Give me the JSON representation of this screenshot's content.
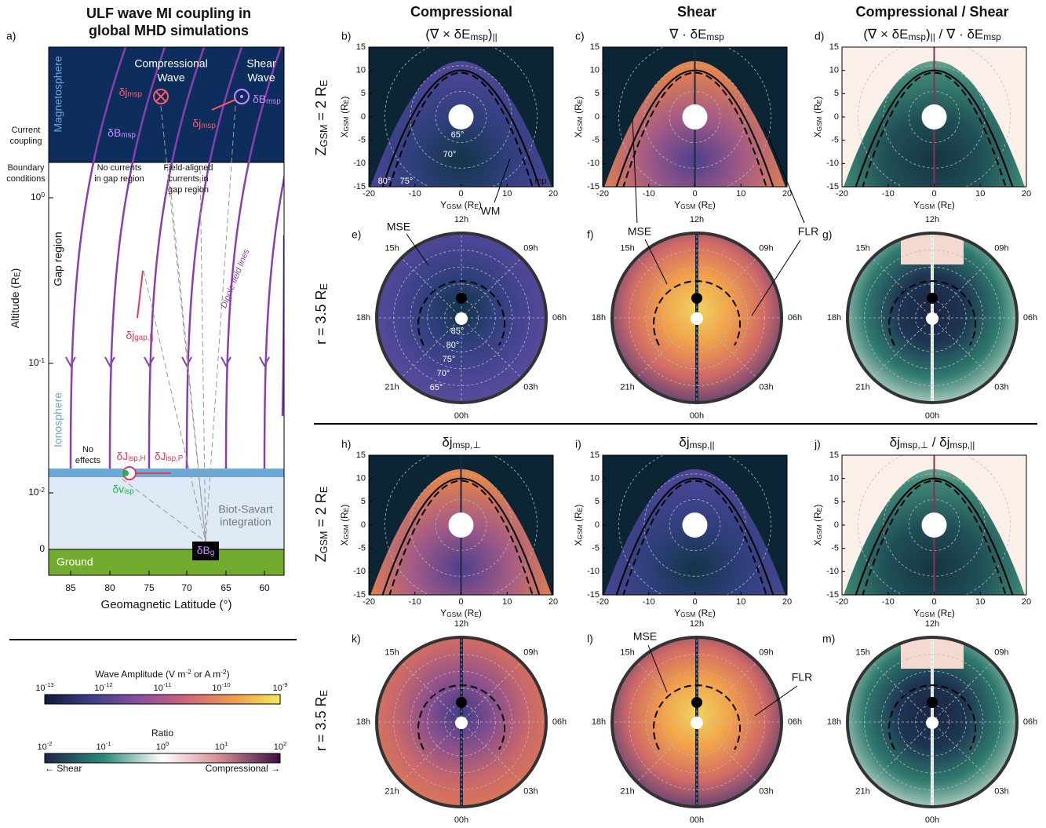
{
  "panel_a": {
    "label": "a)",
    "title": [
      "ULF wave MI coupling in",
      "global MHD simulations"
    ],
    "regions": {
      "magnetosphere": "Magnetosphere",
      "gap": "Gap region",
      "ionosphere": "Ionosphere",
      "ground": "Ground"
    },
    "notes": {
      "compressional_wave": [
        "Compressional",
        "Wave"
      ],
      "shear_wave": [
        "Shear",
        "Wave"
      ],
      "current_coupling": [
        "Current",
        "coupling"
      ],
      "boundary": [
        "Boundary",
        "conditions"
      ],
      "no_currents": [
        "No currents",
        "in gap region"
      ],
      "field_aligned": [
        "Field-aligned",
        "currents in",
        "gap region"
      ],
      "dipole": "Dipole field lines",
      "no_effects": [
        "No",
        "effects"
      ],
      "biot_savart": [
        "Biot-Savart",
        "integration"
      ]
    },
    "symbols": {
      "dj_msp": [
        "δj",
        {
          "sub": "msp"
        }
      ],
      "dB_msp": [
        "δB",
        {
          "sub": "msp"
        }
      ],
      "dj_gap": [
        "δj",
        {
          "sub": "gap,||"
        }
      ],
      "dJ_isp_H": [
        "δJ",
        {
          "sub": "isp,H"
        }
      ],
      "dJ_isp_P": [
        "δJ",
        {
          "sub": "isp,P"
        }
      ],
      "dv_isp": [
        "δv",
        {
          "sub": "isp"
        }
      ],
      "dB_g": [
        "δB",
        {
          "sub": "g"
        }
      ]
    },
    "yticks": [
      [
        "10",
        {
          "sup": "0"
        }
      ],
      [
        "10",
        {
          "sup": "-1"
        }
      ],
      [
        "10",
        {
          "sup": "-2"
        }
      ],
      0
    ],
    "ylabel": [
      "Altitude (R",
      {
        "sub": "E"
      },
      ")"
    ],
    "xticks": [
      85,
      80,
      75,
      70,
      65,
      60
    ],
    "xlabel": "Geomagnetic Latitude (°)"
  },
  "colorbars": [
    {
      "title": [
        "Wave Amplitude (V m",
        {
          "sup": "-2"
        },
        "  or  A m",
        {
          "sup": "-2"
        },
        ")"
      ],
      "ticks": [
        [
          "10",
          {
            "sup": "-13"
          }
        ],
        [
          "10",
          {
            "sup": "-12"
          }
        ],
        [
          "10",
          {
            "sup": "-11"
          }
        ],
        [
          "10",
          {
            "sup": "-10"
          }
        ],
        [
          "10",
          {
            "sup": "-9"
          }
        ]
      ],
      "colors": [
        "#0d1b3a",
        "#3d3f8a",
        "#8a4fa0",
        "#d0637a",
        "#f29a4a",
        "#f5e85a"
      ]
    },
    {
      "title": "Ratio",
      "ticks": [
        [
          "10",
          {
            "sup": "-2"
          }
        ],
        [
          "10",
          {
            "sup": "-1"
          }
        ],
        [
          "10",
          {
            "sup": "0"
          }
        ],
        [
          "10",
          {
            "sup": "1"
          }
        ],
        [
          "10",
          {
            "sup": "2"
          }
        ]
      ],
      "ends": [
        "← Shear",
        "Compressional →"
      ],
      "colors": [
        "#1b2548",
        "#2a8a7a",
        "#ffffff",
        "#d08a90",
        "#3a0e3e"
      ]
    }
  ],
  "column_headers": [
    "Compressional",
    "Shear",
    "Compressional / Shear"
  ],
  "row_labels": [
    [
      "Z",
      {
        "sub": "GSM"
      },
      " = 2 R",
      {
        "sub": "E"
      }
    ],
    [
      "r = 3.5 R",
      {
        "sub": "E"
      }
    ],
    [
      "Z",
      {
        "sub": "GSM"
      },
      " = 2 R",
      {
        "sub": "E"
      }
    ],
    [
      "r = 3.5 R",
      {
        "sub": "E"
      }
    ]
  ],
  "cartesian_axes": {
    "xticks": [
      -20,
      -10,
      0,
      10,
      20
    ],
    "yticks": [
      15,
      10,
      5,
      0,
      -5,
      -10,
      -15
    ],
    "xlabel": [
      "Y",
      {
        "sub": "GSM"
      },
      " (R",
      {
        "sub": "E"
      },
      ")"
    ],
    "ylabel": [
      "X",
      {
        "sub": "GSM"
      },
      " (R",
      {
        "sub": "E"
      },
      ")"
    ]
  },
  "hours": [
    "12h",
    "09h",
    "06h",
    "03h",
    "00h",
    "21h",
    "18h",
    "15h"
  ],
  "panels": [
    {
      "label": "b)",
      "kind": "cartesian",
      "scheme": "low",
      "title": [
        "(∇ × δE",
        {
          "sub": "msp"
        },
        ")",
        {
          "sub": "||"
        }
      ],
      "annotations": [
        "65°",
        "70°",
        "80°",
        "75°",
        "mp",
        "WM"
      ]
    },
    {
      "label": "c)",
      "kind": "cartesian",
      "scheme": "high",
      "title": [
        "∇ · δE",
        {
          "sub": "msp"
        }
      ],
      "annotations": []
    },
    {
      "label": "d)",
      "kind": "cartesian",
      "scheme": "ratio",
      "title": [
        "(∇ × δE",
        {
          "sub": "msp"
        },
        ")",
        {
          "sub": "||"
        },
        " /  ∇ · δE",
        {
          "sub": "msp"
        }
      ],
      "annotations": []
    },
    {
      "label": "e)",
      "kind": "polar",
      "scheme": "low",
      "annotations": [
        "MSE",
        "85°",
        "80°",
        "75°",
        "70°",
        "65°"
      ]
    },
    {
      "label": "f)",
      "kind": "polar",
      "scheme": "bright",
      "annotations": [
        "MSE",
        "FLR"
      ]
    },
    {
      "label": "g)",
      "kind": "polar",
      "scheme": "ratio_polar",
      "annotations": []
    },
    {
      "label": "h)",
      "kind": "cartesian",
      "scheme": "high",
      "title": [
        "δj",
        {
          "sub": "msp,⊥"
        }
      ],
      "annotations": []
    },
    {
      "label": "i)",
      "kind": "cartesian",
      "scheme": "low",
      "title": [
        "δj",
        {
          "sub": "msp,||"
        }
      ],
      "annotations": []
    },
    {
      "label": "j)",
      "kind": "cartesian",
      "scheme": "ratio",
      "title": [
        "δj",
        {
          "sub": "msp,⊥"
        },
        " /  δj",
        {
          "sub": "msp,||"
        }
      ],
      "annotations": []
    },
    {
      "label": "k)",
      "kind": "polar",
      "scheme": "mid",
      "annotations": []
    },
    {
      "label": "l)",
      "kind": "polar",
      "scheme": "bright",
      "annotations": [
        "MSE",
        "FLR"
      ]
    },
    {
      "label": "m)",
      "kind": "polar",
      "scheme": "ratio_polar",
      "annotations": []
    }
  ]
}
